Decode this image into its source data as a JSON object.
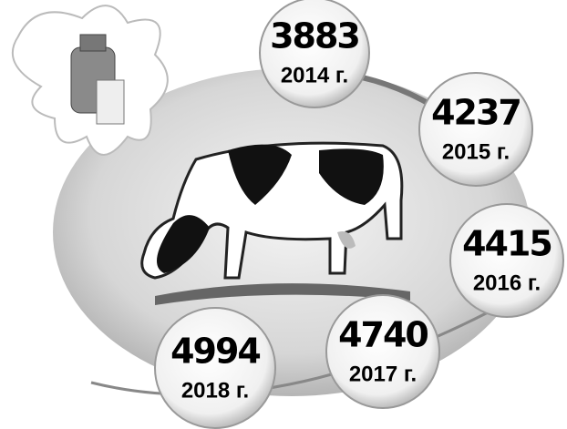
{
  "items": [
    {
      "value": 3883,
      "year": "2014 г."
    },
    {
      "value": 4237,
      "year": "2015 г."
    },
    {
      "value": 4415,
      "year": "2016 г."
    },
    {
      "value": 4740,
      "year": "2017 г."
    },
    {
      "value": 4994,
      "year": "2018 г."
    }
  ]
}
